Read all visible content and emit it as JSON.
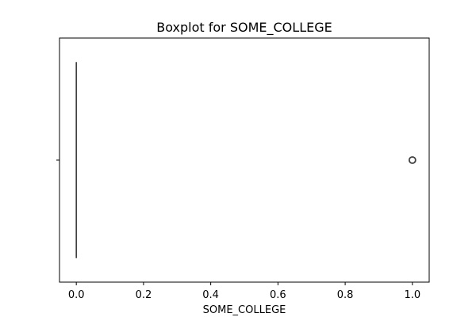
{
  "chart_data": {
    "type": "boxplot",
    "title": "Boxplot for SOME_COLLEGE",
    "xlabel": "SOME_COLLEGE",
    "ylabel": "",
    "orientation": "horizontal",
    "xlim": [
      -0.05,
      1.05
    ],
    "x_ticks": [
      0.0,
      0.2,
      0.4,
      0.6,
      0.8,
      1.0
    ],
    "x_tick_labels": [
      "0.0",
      "0.2",
      "0.4",
      "0.6",
      "0.8",
      "1.0"
    ],
    "grid": false,
    "box": {
      "whisker_low": 0.0,
      "q1": 0.0,
      "median": 0.0,
      "q3": 0.0,
      "whisker_high": 0.0
    },
    "outliers": [
      1.0
    ],
    "colors": {
      "box_face": "#3b6ea5",
      "box_edge": "#3f3f3f",
      "outlier_edge": "#3f3f3f"
    }
  }
}
